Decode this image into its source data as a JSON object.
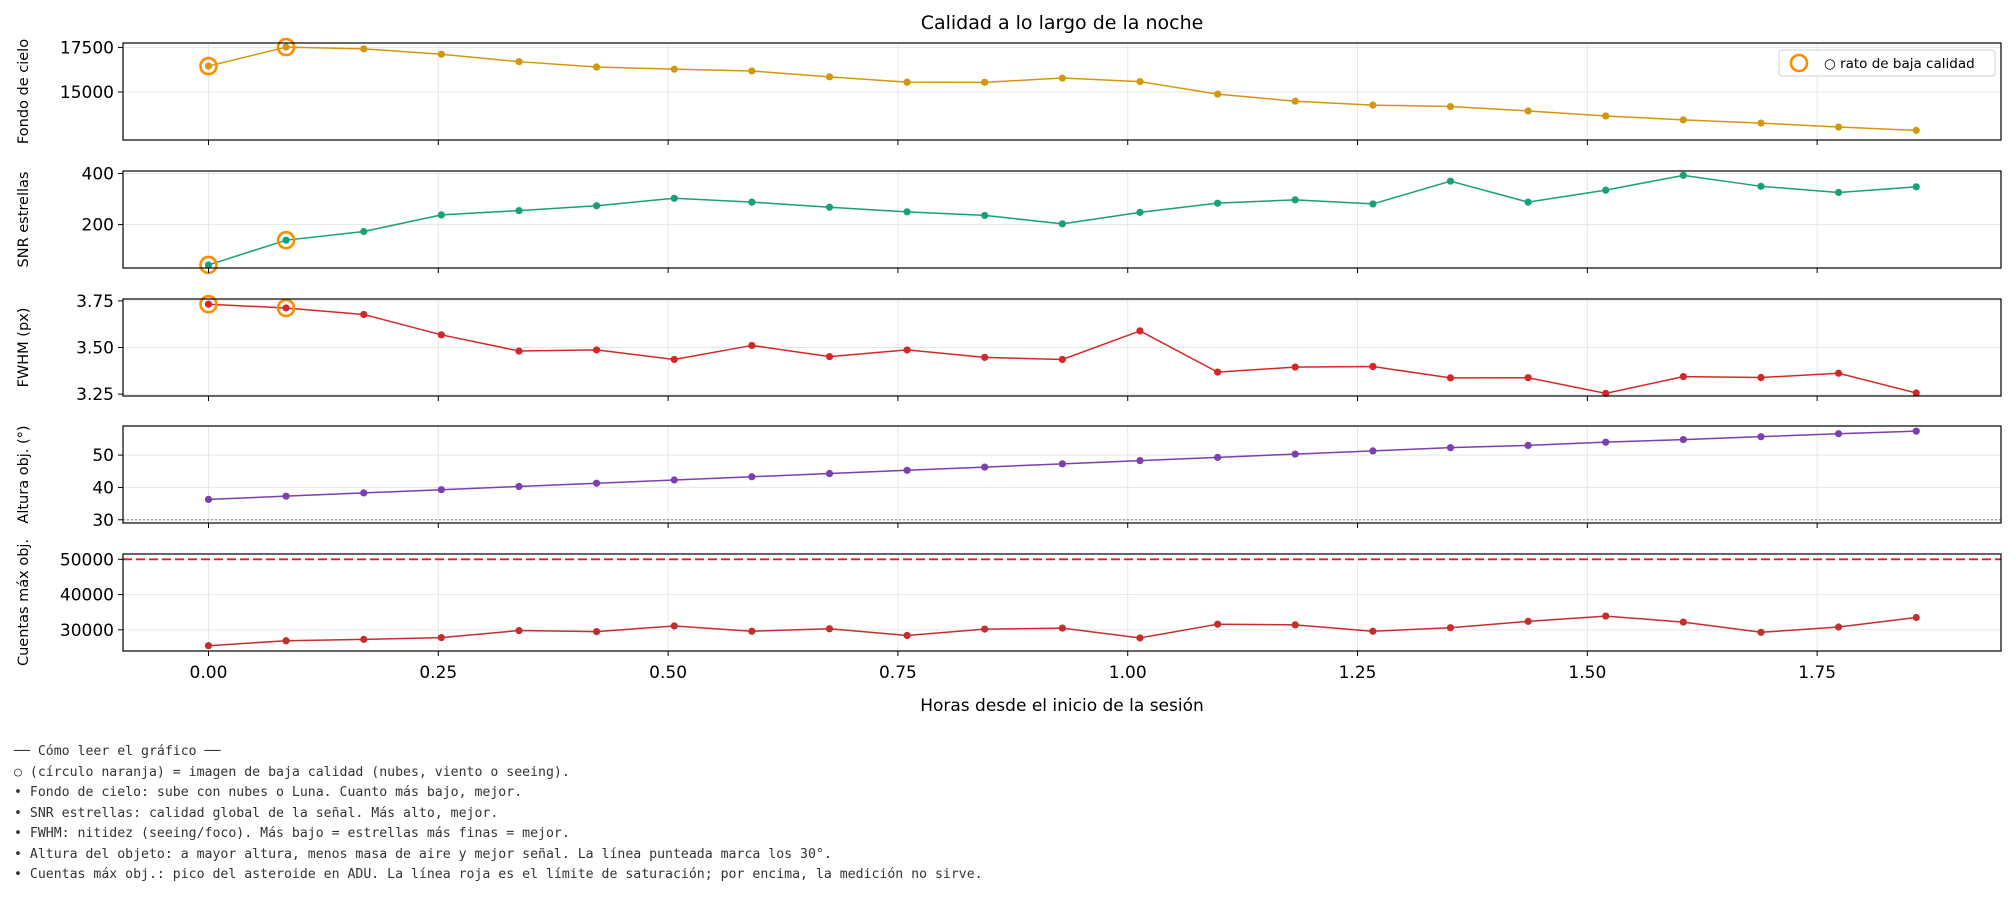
{
  "chart_data": {
    "type": "line",
    "title": "Calidad a lo largo de la noche",
    "xlabel": "Horas desde el inicio de la sesión",
    "xlim": [
      -0.093,
      1.95
    ],
    "xticks": [
      0.0,
      0.25,
      0.5,
      0.75,
      1.0,
      1.25,
      1.5,
      1.75
    ],
    "xtick_labels": [
      "0.00",
      "0.25",
      "0.50",
      "0.75",
      "1.00",
      "1.25",
      "1.50",
      "1.75"
    ],
    "grid": true,
    "x": [
      0.0,
      0.0844,
      0.1689,
      0.2533,
      0.3378,
      0.4222,
      0.5067,
      0.5911,
      0.6756,
      0.76,
      0.8444,
      0.9289,
      1.0133,
      1.0978,
      1.1822,
      1.2667,
      1.3511,
      1.4356,
      1.52,
      1.6044,
      1.6889,
      1.7733,
      1.8578
    ],
    "legend": {
      "label": "○ rato de baja calidad",
      "placement": "top-right",
      "marker_color": "#ff8c00"
    },
    "panels": [
      {
        "ylabel": "Fondo de cielo",
        "color": "#d4960f",
        "ylim": [
          12300,
          17750
        ],
        "yticks": [
          15000,
          17500
        ],
        "ytick_labels": [
          "15000",
          "17500"
        ],
        "values": [
          16450,
          17520,
          17420,
          17120,
          16700,
          16400,
          16280,
          16180,
          15850,
          15550,
          15540,
          15780,
          15580,
          14880,
          14480,
          14260,
          14180,
          13930,
          13650,
          13430,
          13250,
          13030,
          12840
        ],
        "flagged": [
          0,
          1
        ]
      },
      {
        "ylabel": "SNR estrellas",
        "color": "#17a07a",
        "ylim": [
          30,
          410
        ],
        "yticks": [
          200,
          400
        ],
        "ytick_labels": [
          "200",
          "400"
        ],
        "values": [
          42,
          139,
          173,
          238,
          255,
          274,
          303,
          288,
          268,
          250,
          236,
          203,
          248,
          284,
          297,
          281,
          370,
          288,
          335,
          393,
          350,
          326,
          348
        ],
        "flagged": [
          0,
          1
        ]
      },
      {
        "ylabel": "FWHM (px)",
        "color": "#d62728",
        "ylim": [
          3.24,
          3.76
        ],
        "yticks": [
          3.25,
          3.5,
          3.75
        ],
        "ytick_labels": [
          "3.25",
          "3.50",
          "3.75"
        ],
        "values": [
          3.732,
          3.712,
          3.677,
          3.568,
          3.481,
          3.487,
          3.436,
          3.511,
          3.451,
          3.487,
          3.447,
          3.436,
          3.589,
          3.368,
          3.395,
          3.398,
          3.337,
          3.338,
          3.254,
          3.344,
          3.339,
          3.362,
          3.256
        ],
        "flagged": [
          0,
          1
        ]
      },
      {
        "ylabel": "Altura obj. (°)",
        "color": "#7b3fae",
        "ylim": [
          29,
          59
        ],
        "yticks": [
          30,
          40,
          50
        ],
        "ytick_labels": [
          "30",
          "40",
          "50"
        ],
        "values": [
          36.3,
          37.3,
          38.3,
          39.3,
          40.3,
          41.3,
          42.3,
          43.3,
          44.3,
          45.3,
          46.3,
          47.3,
          48.3,
          49.3,
          50.3,
          51.3,
          52.3,
          53.0,
          54.0,
          54.8,
          55.7,
          56.6,
          57.4
        ],
        "ref_line": {
          "y": 30,
          "style": "dotted",
          "color": "#999999"
        }
      },
      {
        "ylabel": "Cuentas máx obj.",
        "color": "#c62d2d",
        "ylim": [
          24000,
          51500
        ],
        "yticks": [
          30000,
          40000,
          50000
        ],
        "ytick_labels": [
          "30000",
          "40000",
          "50000"
        ],
        "values": [
          25500,
          26900,
          27300,
          27800,
          29800,
          29500,
          31100,
          29600,
          30300,
          28400,
          30200,
          30500,
          27700,
          31600,
          31400,
          29600,
          30600,
          32400,
          33900,
          32200,
          29300,
          30800,
          33500
        ],
        "ref_line": {
          "y": 50000,
          "style": "dashed",
          "color": "#d62728"
        }
      }
    ]
  },
  "notes": {
    "heading": "── Cómo leer el gráfico ──",
    "lines": [
      "○ (círculo naranja) = imagen de baja calidad (nubes, viento o seeing).",
      "• Fondo de cielo: sube con nubes o Luna. Cuanto más bajo, mejor.",
      "• SNR estrellas: calidad global de la señal. Más alto, mejor.",
      "• FWHM: nitidez (seeing/foco). Más bajo = estrellas más finas = mejor.",
      "• Altura del objeto: a mayor altura, menos masa de aire y mejor señal. La línea punteada marca los 30°.",
      "• Cuentas máx obj.: pico del asteroide en ADU. La línea roja es el límite de saturación; por encima, la medición no sirve."
    ]
  }
}
